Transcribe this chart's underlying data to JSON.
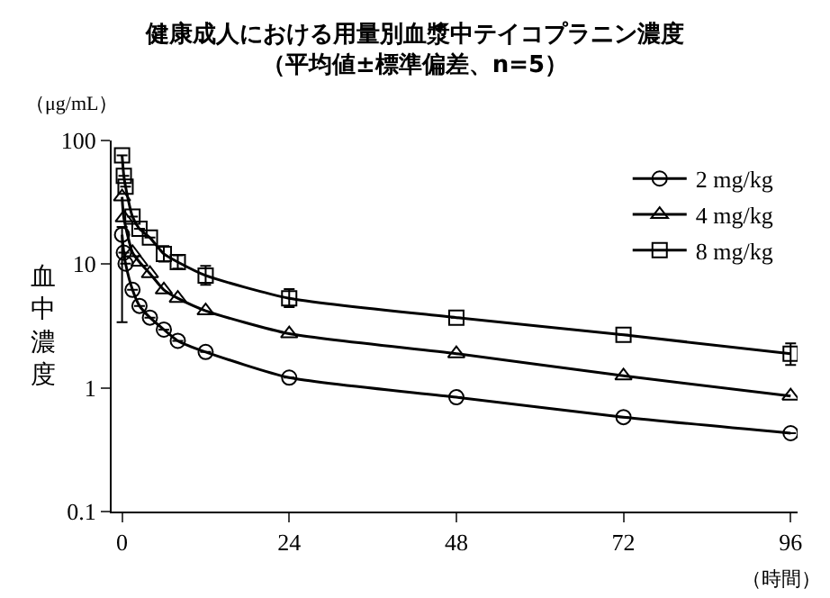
{
  "chart_data": {
    "type": "line",
    "title": "健康成人における用量別血漿中テイコプラニン濃度",
    "subtitle": "（平均値±標準偏差、n=5）",
    "ylabel": "血中濃度",
    "annotations": [
      "（μg/mL）",
      "（時間）"
    ],
    "log": "y",
    "ylim": [
      0.1,
      100
    ],
    "yticks": [
      0.1,
      1,
      10,
      100
    ],
    "xlim": [
      -1.5,
      97
    ],
    "xticks": [
      0,
      24,
      48,
      72,
      96
    ],
    "legend": "top right",
    "series": [
      {
        "name": "2 mg/kg",
        "color": "#000000",
        "marker": "circle",
        "x": [
          0,
          0.25,
          0.5,
          1.5,
          2.5,
          4,
          6,
          8,
          12,
          24,
          48,
          72,
          96
        ],
        "values": [
          17.3,
          12.4,
          10.1,
          6.2,
          4.6,
          3.7,
          2.96,
          2.4,
          1.95,
          1.21,
          0.84,
          0.58,
          0.43
        ],
        "errors": [
          [
            3.4,
            20
          ],
          null,
          null,
          null,
          null,
          null,
          null,
          null,
          null,
          null,
          null,
          null,
          null
        ]
      },
      {
        "name": "4 mg/kg",
        "color": "#000000",
        "marker": "triangle",
        "x": [
          0,
          0.25,
          1.5,
          2.5,
          4,
          6,
          8,
          12,
          24,
          48,
          72,
          96
        ],
        "values": [
          35,
          23.7,
          12.4,
          10.4,
          8.4,
          6.2,
          5.3,
          4.2,
          2.74,
          1.89,
          1.25,
          0.86
        ]
      },
      {
        "name": "8 mg/kg",
        "color": "#000000",
        "marker": "square",
        "x": [
          0,
          0.25,
          0.5,
          1.5,
          2.5,
          4,
          6,
          8,
          12,
          24,
          48,
          72,
          96
        ],
        "values": [
          75.7,
          51.8,
          42.3,
          24.2,
          19.3,
          16.4,
          12.1,
          10.4,
          8.1,
          5.3,
          3.7,
          2.68,
          1.89
        ],
        "errors": [
          null,
          null,
          null,
          null,
          null,
          null,
          [
            10.5,
            14
          ],
          [
            9.2,
            11.8
          ],
          [
            6.8,
            9.7
          ],
          [
            4.5,
            6.3
          ],
          null,
          null,
          [
            1.53,
            2.29
          ]
        ]
      }
    ]
  }
}
